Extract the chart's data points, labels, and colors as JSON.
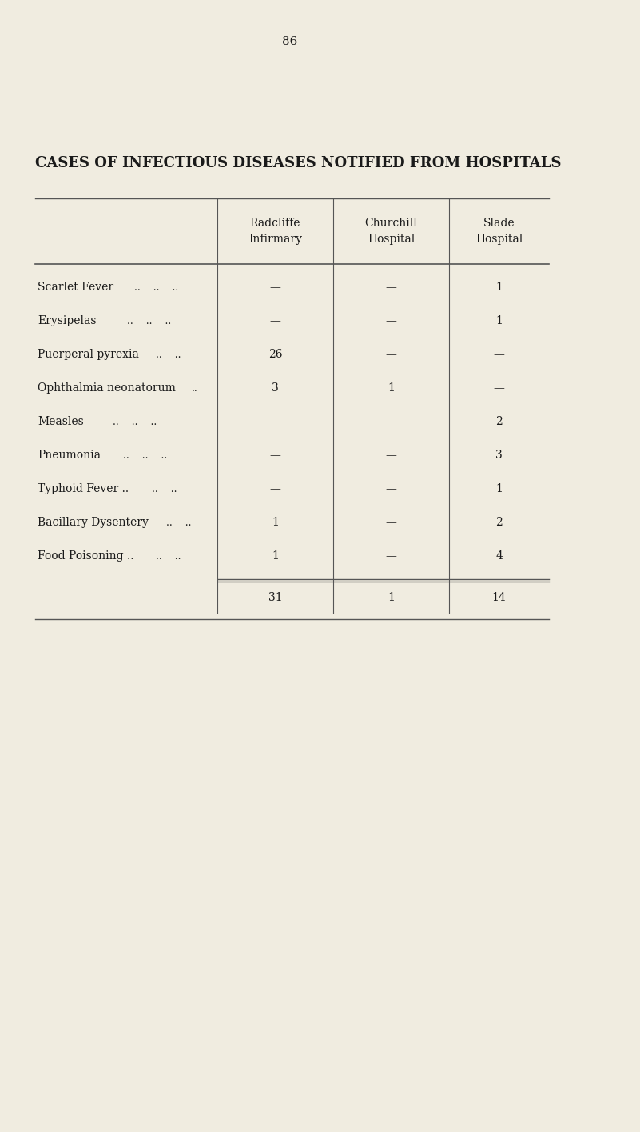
{
  "page_number": "86",
  "title": "CASES OF INFECTIOUS DISEASES NOTIFIED FROM HOSPITALS",
  "columns": [
    "Radcliffe\nInfirmary",
    "Churchill\nHospital",
    "Slade\nHospital"
  ],
  "rows": [
    {
      "label": "Scarlet Fever",
      "dots": ".. .. ..",
      "values": [
        "—",
        "—",
        "1"
      ]
    },
    {
      "label": "Erysipelas",
      "dots": ".. .. ..",
      "values": [
        "—",
        "—",
        "1"
      ]
    },
    {
      "label": "Puerperal pyrexia",
      "dots": ".. ..",
      "values": [
        "26",
        "—",
        "—"
      ]
    },
    {
      "label": "Ophthalmia neonatorum",
      "dots": "..",
      "values": [
        "3",
        "1",
        "—"
      ]
    },
    {
      "label": "Measles",
      "dots": ".. .. ..",
      "values": [
        "—",
        "—",
        "2"
      ]
    },
    {
      "label": "Pneumonia",
      "dots": ".. .. ..",
      "values": [
        "—",
        "—",
        "3"
      ]
    },
    {
      "label": "Typhoid Fever ..",
      "dots": ".. ..",
      "values": [
        "—",
        "—",
        "1"
      ]
    },
    {
      "label": "Bacillary Dysentery",
      "dots": ".. ..",
      "values": [
        "1",
        "—",
        "2"
      ]
    },
    {
      "label": "Food Poisoning ..",
      "dots": ".. ..",
      "values": [
        "1",
        "—",
        "4"
      ]
    }
  ],
  "totals": [
    "31",
    "1",
    "14"
  ],
  "bg_color": "#f0ece0",
  "text_color": "#1a1a1a",
  "line_color": "#555555",
  "title_fontsize": 13,
  "header_fontsize": 10,
  "row_fontsize": 10,
  "page_num_fontsize": 11
}
